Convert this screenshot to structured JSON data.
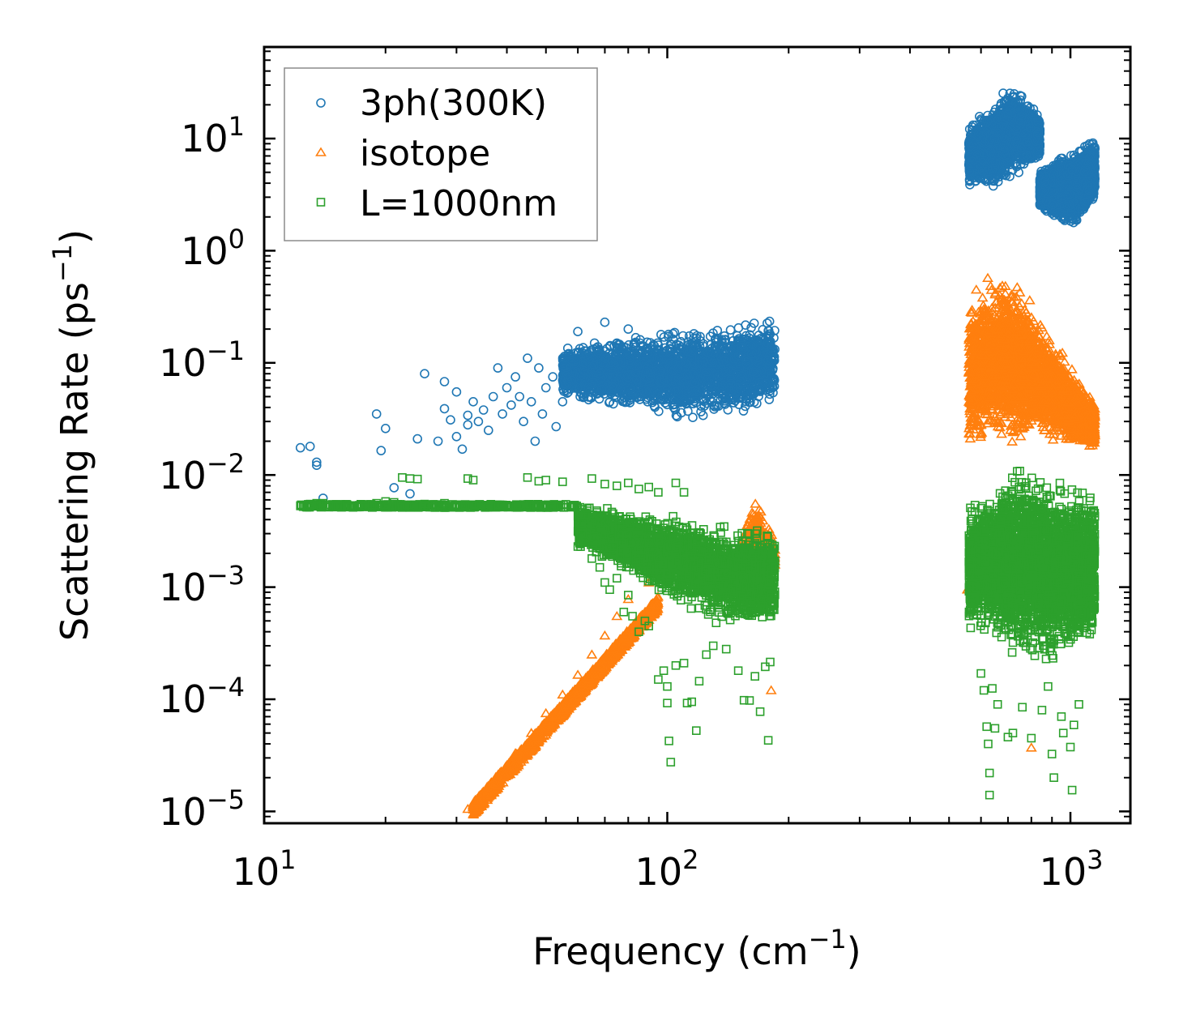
{
  "chart_data": {
    "type": "scatter",
    "x_scale": "log",
    "y_scale": "log",
    "xlabel": "Frequency (cm",
    "xlabel_sup": "−1",
    "xlabel_end": ")",
    "ylabel": "Scattering Rate (ps",
    "ylabel_sup": "−1",
    "ylabel_end": ")",
    "xlim": [
      10,
      1400
    ],
    "ylim": [
      8.5e-06,
      60
    ],
    "x_ticks": [
      {
        "value": 10,
        "base": "10",
        "exp": "1"
      },
      {
        "value": 100,
        "base": "10",
        "exp": "2"
      },
      {
        "value": 1000,
        "base": "10",
        "exp": "3"
      }
    ],
    "y_ticks": [
      {
        "value": 10,
        "base": "10",
        "exp": "1"
      },
      {
        "value": 1,
        "base": "10",
        "exp": "0"
      },
      {
        "value": 0.1,
        "base": "10",
        "exp": "−1"
      },
      {
        "value": 0.01,
        "base": "10",
        "exp": "−2"
      },
      {
        "value": 0.001,
        "base": "10",
        "exp": "−3"
      },
      {
        "value": 0.0001,
        "base": "10",
        "exp": "−4"
      },
      {
        "value": 1e-05,
        "base": "10",
        "exp": "−5"
      }
    ],
    "legend_position": "top-left",
    "series": [
      {
        "name": "3ph(300K)",
        "marker": "circle",
        "color": "#1f77b4",
        "points": [
          [
            12.3,
            0.0175
          ],
          [
            13,
            0.018
          ],
          [
            13.5,
            0.013
          ],
          [
            13.5,
            0.0122
          ],
          [
            14,
            0.0062
          ],
          [
            19,
            0.035
          ],
          [
            19.5,
            0.0165
          ],
          [
            20,
            0.026
          ],
          [
            21,
            0.0077
          ],
          [
            23,
            0.0068
          ],
          [
            24,
            0.021
          ],
          [
            25,
            0.08
          ],
          [
            27,
            0.02
          ],
          [
            28,
            0.068
          ],
          [
            28,
            0.039
          ],
          [
            29,
            0.031
          ],
          [
            30,
            0.022
          ],
          [
            30,
            0.055
          ],
          [
            31,
            0.017
          ],
          [
            32,
            0.034
          ],
          [
            32,
            0.028
          ],
          [
            33,
            0.045
          ],
          [
            34,
            0.03
          ],
          [
            35,
            0.038
          ],
          [
            36,
            0.025
          ],
          [
            37,
            0.05
          ],
          [
            38,
            0.09
          ],
          [
            39,
            0.035
          ],
          [
            40,
            0.06
          ],
          [
            41,
            0.042
          ],
          [
            42,
            0.075
          ],
          [
            43,
            0.05
          ],
          [
            44,
            0.03
          ],
          [
            45,
            0.11
          ],
          [
            46,
            0.045
          ],
          [
            47,
            0.02
          ],
          [
            48,
            0.09
          ],
          [
            49,
            0.035
          ],
          [
            50,
            0.06
          ],
          [
            52,
            0.075
          ],
          [
            53,
            0.027
          ],
          [
            55,
            0.045
          ],
          [
            57,
            0.12
          ],
          [
            58,
            0.07
          ],
          [
            60,
            0.19
          ],
          [
            62,
            0.1
          ],
          [
            64,
            0.055
          ],
          [
            66,
            0.15
          ],
          [
            68,
            0.08
          ],
          [
            70,
            0.23
          ],
          [
            72,
            0.045
          ],
          [
            75,
            0.15
          ],
          [
            78,
            0.1
          ],
          [
            80,
            0.2
          ],
          [
            85,
            0.06
          ]
        ],
        "bands": [
          {
            "x": [
              55,
              185
            ],
            "y_lo_start": 0.045,
            "y_lo_end": 0.035,
            "y_lo_dip_x": 110,
            "y_lo_dip": 0.028,
            "y_hi_start": 0.15,
            "y_hi_end": 0.29,
            "n": 2600
          },
          {
            "x": [
              560,
              840
            ],
            "y_lo_start": 3.5,
            "y_lo_end": 6,
            "y_lo_dip_x": 620,
            "y_lo_dip": 3.3,
            "y_hi_start": 13,
            "y_hi_end": 17,
            "y_hi_peak_x": 720,
            "y_hi_peak": 32,
            "n": 2600
          },
          {
            "x": [
              840,
              1150
            ],
            "y_lo_start": 2.2,
            "y_lo_end": 2.5,
            "y_lo_dip_x": 1000,
            "y_lo_dip": 1.5,
            "y_hi_start": 5.5,
            "y_hi_end": 11,
            "n": 2600
          }
        ]
      },
      {
        "name": "isotope",
        "marker": "triangle",
        "color": "#ff7f0e",
        "points": [
          [
            32,
            1.05e-05
          ],
          [
            33,
            1.15e-05
          ],
          [
            34,
            1.25e-05
          ],
          [
            35,
            1.45e-05
          ],
          [
            38,
            2.1e-05
          ],
          [
            42,
            3.3e-05
          ],
          [
            46,
            5e-05
          ],
          [
            50,
            7.5e-05
          ],
          [
            55,
            0.00011
          ],
          [
            60,
            0.000165
          ],
          [
            65,
            0.00025
          ],
          [
            70,
            0.00037
          ],
          [
            75,
            0.00055
          ],
          [
            80,
            0.00078
          ],
          [
            90,
            0.0011
          ],
          [
            181,
            0.00012
          ],
          [
            555,
            0.00095
          ],
          [
            800,
            3.7e-05
          ]
        ],
        "bands": [
          {
            "x": [
              33,
              95
            ],
            "curve": "power",
            "y_at_33": 1.05e-05,
            "slope": 4,
            "spread": 0.12,
            "n": 1400
          },
          {
            "x": [
              150,
              185
            ],
            "y_lo_start": 0.0008,
            "y_lo_end": 0.0012,
            "y_hi_start": 0.002,
            "y_hi_end": 0.0025,
            "y_hi_peak_x": 165,
            "y_hi_peak": 0.009,
            "n": 500
          },
          {
            "x": [
              560,
              1150
            ],
            "y_lo_start": 0.013,
            "y_lo_end": 0.015,
            "y_lo_dip_x": 800,
            "y_lo_dip": 0.02,
            "y_hi_start": 0.5,
            "y_hi_end": 0.05,
            "y_hi_peak_x": 700,
            "y_hi_peak": 0.75,
            "n": 3000
          }
        ]
      },
      {
        "name": "L=1000nm",
        "marker": "square",
        "color": "#2ca02c",
        "points": [
          [
            12.3,
            0.0053
          ],
          [
            13,
            0.0055
          ],
          [
            13.5,
            0.0056
          ],
          [
            14,
            0.0056
          ],
          [
            18.5,
            0.0054
          ],
          [
            19,
            0.0056
          ],
          [
            20,
            0.0058
          ],
          [
            21,
            0.0057
          ],
          [
            22,
            0.0095
          ],
          [
            23,
            0.0093
          ],
          [
            24,
            0.0092
          ],
          [
            25,
            0.0055
          ],
          [
            28,
            0.0056
          ],
          [
            30,
            0.0054
          ],
          [
            32,
            0.0093
          ],
          [
            33,
            0.009
          ],
          [
            36,
            0.0052
          ],
          [
            40,
            0.0052
          ],
          [
            45,
            0.0095
          ],
          [
            48,
            0.0088
          ],
          [
            50,
            0.009
          ],
          [
            55,
            0.0087
          ],
          [
            60,
            0.0051
          ],
          [
            65,
            0.0093
          ],
          [
            70,
            0.0083
          ],
          [
            75,
            0.008
          ],
          [
            80,
            0.0085
          ],
          [
            85,
            0.0075
          ],
          [
            90,
            0.0078
          ],
          [
            95,
            0.007
          ],
          [
            105,
            0.0085
          ],
          [
            110,
            0.007
          ],
          [
            60,
            0.0023
          ],
          [
            65,
            0.0018
          ],
          [
            68,
            0.0015
          ],
          [
            70,
            0.0011
          ],
          [
            72,
            0.00095
          ],
          [
            75,
            0.0012
          ],
          [
            78,
            0.0006
          ],
          [
            80,
            0.00085
          ],
          [
            82,
            0.00055
          ],
          [
            85,
            0.0004
          ],
          [
            88,
            0.0005
          ],
          [
            90,
            0.00045
          ],
          [
            95,
            0.00015
          ],
          [
            98,
            0.00018
          ],
          [
            100,
            0.00013
          ],
          [
            100,
            9.25e-05
          ],
          [
            101,
            4.25e-05
          ],
          [
            102,
            2.75e-05
          ],
          [
            105,
            0.0002
          ],
          [
            110,
            0.00021
          ],
          [
            112,
            9.25e-05
          ],
          [
            115,
            9.5e-05
          ],
          [
            118,
            5.25e-05
          ],
          [
            120,
            0.000145
          ],
          [
            125,
            0.00025
          ],
          [
            130,
            0.0003
          ],
          [
            140,
            0.00028
          ],
          [
            150,
            0.00018
          ],
          [
            155,
            9.8e-05
          ],
          [
            160,
            9.75e-05
          ],
          [
            165,
            0.00016
          ],
          [
            170,
            7.75e-05
          ],
          [
            175,
            0.000195
          ],
          [
            178,
            4.3e-05
          ],
          [
            180,
            0.000215
          ],
          [
            600,
            0.00017
          ],
          [
            610,
            0.00012
          ],
          [
            620,
            5.7e-05
          ],
          [
            625,
            4e-05
          ],
          [
            630,
            2.2e-05
          ],
          [
            630,
            1.4e-05
          ],
          [
            640,
            0.000125
          ],
          [
            650,
            5.5e-05
          ],
          [
            660,
            9e-05
          ],
          [
            700,
            4.6e-05
          ],
          [
            720,
            5e-05
          ],
          [
            760,
            8.5e-05
          ],
          [
            800,
            4.5e-05
          ],
          [
            850,
            8e-05
          ],
          [
            880,
            0.00013
          ],
          [
            900,
            3.25e-05
          ],
          [
            910,
            2e-05
          ],
          [
            950,
            7e-05
          ],
          [
            960,
            5e-05
          ],
          [
            1000,
            3.75e-05
          ],
          [
            1020,
            5.9e-05
          ],
          [
            1050,
            9e-05
          ],
          [
            1010,
            1.55e-05
          ]
        ],
        "bands": [
          {
            "x": [
              12.3,
              60
            ],
            "curve": "flat",
            "y_center": 0.0053,
            "spread": 0.03,
            "n": 400
          },
          {
            "x": [
              60,
              185
            ],
            "y_lo_start": 0.0022,
            "y_lo_end": 0.0004,
            "y_lo_dip_x": 140,
            "y_lo_dip": 0.0004,
            "y_hi_start": 0.0055,
            "y_hi_end": 0.0035,
            "n": 3200
          },
          {
            "x": [
              560,
              1150
            ],
            "y_lo_start": 0.00035,
            "y_lo_end": 0.00025,
            "y_lo_dip_x": 850,
            "y_lo_dip": 0.00017,
            "y_hi_start": 0.006,
            "y_hi_end": 0.009,
            "y_hi_peak_x": 750,
            "y_hi_peak": 0.014,
            "n": 3400
          }
        ]
      }
    ]
  }
}
